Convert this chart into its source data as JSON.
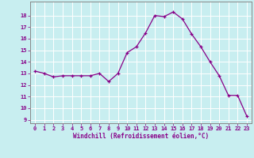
{
  "x": [
    0,
    1,
    2,
    3,
    4,
    5,
    6,
    7,
    8,
    9,
    10,
    11,
    12,
    13,
    14,
    15,
    16,
    17,
    18,
    19,
    20,
    21,
    22,
    23
  ],
  "y": [
    13.2,
    13.0,
    12.7,
    12.8,
    12.8,
    12.8,
    12.8,
    13.0,
    12.3,
    13.0,
    14.8,
    15.3,
    16.5,
    18.0,
    17.9,
    18.3,
    17.7,
    16.4,
    15.3,
    14.0,
    12.8,
    11.1,
    11.1,
    9.3
  ],
  "xlabel": "Windchill (Refroidissement éolien,°C)",
  "ylim_min": 9,
  "ylim_max": 19,
  "xlim_min": 0,
  "xlim_max": 23,
  "yticks": [
    9,
    10,
    11,
    12,
    13,
    14,
    15,
    16,
    17,
    18
  ],
  "xticks": [
    0,
    1,
    2,
    3,
    4,
    5,
    6,
    7,
    8,
    9,
    10,
    11,
    12,
    13,
    14,
    15,
    16,
    17,
    18,
    19,
    20,
    21,
    22,
    23
  ],
  "line_color": "#880088",
  "bg_color": "#c8eef0",
  "grid_color": "#aadddd",
  "spine_color": "#888888",
  "label_color": "#880088",
  "tick_color": "#880088",
  "xlabel_color": "#880088"
}
